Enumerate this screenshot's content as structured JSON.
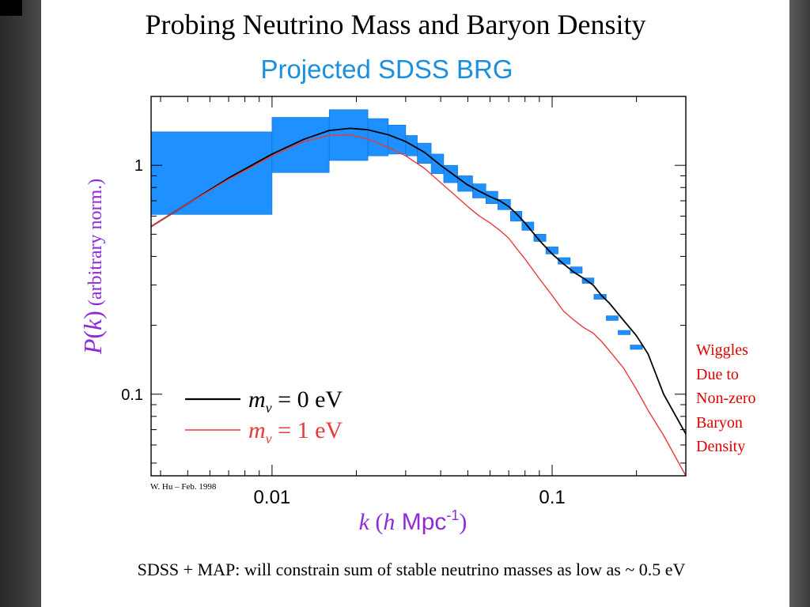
{
  "slide": {
    "title": "Probing Neutrino Mass and Baryon Density",
    "note_lines": [
      "Wiggles",
      "Due to",
      "Non-zero",
      "Baryon",
      "Density"
    ],
    "footer": "SDSS + MAP: will constrain sum of stable neutrino masses as low as ~ 0.5 eV"
  },
  "chart_data": {
    "type": "line",
    "title": "Projected SDSS BRG",
    "xlabel": "k (h Mpc-1)",
    "ylabel": "P(k)   (arbitrary norm.)",
    "credit": "W. Hu – Feb. 1998",
    "x_scale": "log",
    "y_scale": "log",
    "xlim": [
      0.0037,
      0.3
    ],
    "ylim": [
      0.044,
      2.0
    ],
    "x_ticks": [
      {
        "value": 0.01,
        "label": "0.01"
      },
      {
        "value": 0.1,
        "label": "0.1"
      }
    ],
    "y_ticks": [
      {
        "value": 0.1,
        "label": "0.1"
      },
      {
        "value": 1,
        "label": "1"
      }
    ],
    "colors": {
      "title": "#1a8fe0",
      "axis_label": "#8e2bd6",
      "error_box": "#1e90ff",
      "m0": "#000000",
      "m1": "#e83a3a"
    },
    "series": [
      {
        "name": "m_ν = 0 eV",
        "legend": {
          "sym": "m",
          "sub": "ν",
          "rest": " = 0 eV"
        },
        "x": [
          0.0037,
          0.005,
          0.007,
          0.01,
          0.013,
          0.016,
          0.019,
          0.022,
          0.026,
          0.03,
          0.035,
          0.04,
          0.045,
          0.05,
          0.055,
          0.06,
          0.065,
          0.07,
          0.075,
          0.08,
          0.09,
          0.1,
          0.11,
          0.12,
          0.13,
          0.14,
          0.15,
          0.16,
          0.18,
          0.2,
          0.22,
          0.25,
          0.3
        ],
        "y": [
          0.54,
          0.68,
          0.88,
          1.12,
          1.3,
          1.42,
          1.45,
          1.43,
          1.36,
          1.27,
          1.14,
          1.0,
          0.9,
          0.82,
          0.77,
          0.73,
          0.7,
          0.66,
          0.61,
          0.56,
          0.47,
          0.41,
          0.37,
          0.34,
          0.32,
          0.3,
          0.27,
          0.25,
          0.21,
          0.18,
          0.15,
          0.1,
          0.067
        ]
      },
      {
        "name": "m_ν = 1 eV",
        "legend": {
          "sym": "m",
          "sub": "ν",
          "rest": " = 1 eV"
        },
        "x": [
          0.0037,
          0.005,
          0.007,
          0.01,
          0.013,
          0.016,
          0.019,
          0.022,
          0.026,
          0.03,
          0.035,
          0.04,
          0.045,
          0.05,
          0.055,
          0.06,
          0.065,
          0.07,
          0.075,
          0.08,
          0.09,
          0.1,
          0.11,
          0.12,
          0.13,
          0.14,
          0.15,
          0.16,
          0.18,
          0.2,
          0.22,
          0.25,
          0.3
        ],
        "y": [
          0.54,
          0.68,
          0.87,
          1.1,
          1.27,
          1.35,
          1.36,
          1.3,
          1.2,
          1.1,
          0.97,
          0.84,
          0.74,
          0.66,
          0.6,
          0.56,
          0.52,
          0.48,
          0.43,
          0.39,
          0.32,
          0.27,
          0.23,
          0.21,
          0.195,
          0.185,
          0.17,
          0.155,
          0.13,
          0.105,
          0.085,
          0.066,
          0.044
        ]
      }
    ],
    "error_boxes": [
      {
        "x0": 0.0037,
        "x1": 0.01,
        "y0": 0.61,
        "y1": 1.4
      },
      {
        "x0": 0.01,
        "x1": 0.016,
        "y0": 0.93,
        "y1": 1.62
      },
      {
        "x0": 0.016,
        "x1": 0.022,
        "y0": 1.05,
        "y1": 1.75
      },
      {
        "x0": 0.022,
        "x1": 0.026,
        "y0": 1.1,
        "y1": 1.6
      },
      {
        "x0": 0.026,
        "x1": 0.03,
        "y0": 1.12,
        "y1": 1.5
      },
      {
        "x0": 0.03,
        "x1": 0.033,
        "y0": 1.1,
        "y1": 1.35
      },
      {
        "x0": 0.033,
        "x1": 0.037,
        "y0": 1.02,
        "y1": 1.25
      },
      {
        "x0": 0.037,
        "x1": 0.041,
        "y0": 0.92,
        "y1": 1.12
      },
      {
        "x0": 0.041,
        "x1": 0.046,
        "y0": 0.84,
        "y1": 1.0
      },
      {
        "x0": 0.046,
        "x1": 0.052,
        "y0": 0.77,
        "y1": 0.9
      },
      {
        "x0": 0.052,
        "x1": 0.058,
        "y0": 0.72,
        "y1": 0.83
      },
      {
        "x0": 0.058,
        "x1": 0.064,
        "y0": 0.68,
        "y1": 0.77
      },
      {
        "x0": 0.064,
        "x1": 0.071,
        "y0": 0.64,
        "y1": 0.71
      },
      {
        "x0": 0.071,
        "x1": 0.078,
        "y0": 0.57,
        "y1": 0.63
      },
      {
        "x0": 0.078,
        "x1": 0.086,
        "y0": 0.52,
        "y1": 0.565
      },
      {
        "x0": 0.086,
        "x1": 0.095,
        "y0": 0.465,
        "y1": 0.5
      },
      {
        "x0": 0.095,
        "x1": 0.105,
        "y0": 0.41,
        "y1": 0.44
      },
      {
        "x0": 0.105,
        "x1": 0.116,
        "y0": 0.37,
        "y1": 0.395
      },
      {
        "x0": 0.116,
        "x1": 0.128,
        "y0": 0.338,
        "y1": 0.36
      },
      {
        "x0": 0.128,
        "x1": 0.141,
        "y0": 0.305,
        "y1": 0.322
      },
      {
        "x0": 0.141,
        "x1": 0.156,
        "y0": 0.26,
        "y1": 0.273
      },
      {
        "x0": 0.156,
        "x1": 0.172,
        "y0": 0.21,
        "y1": 0.22
      },
      {
        "x0": 0.172,
        "x1": 0.19,
        "y0": 0.182,
        "y1": 0.19
      },
      {
        "x0": 0.19,
        "x1": 0.21,
        "y0": 0.157,
        "y1": 0.164
      }
    ]
  }
}
